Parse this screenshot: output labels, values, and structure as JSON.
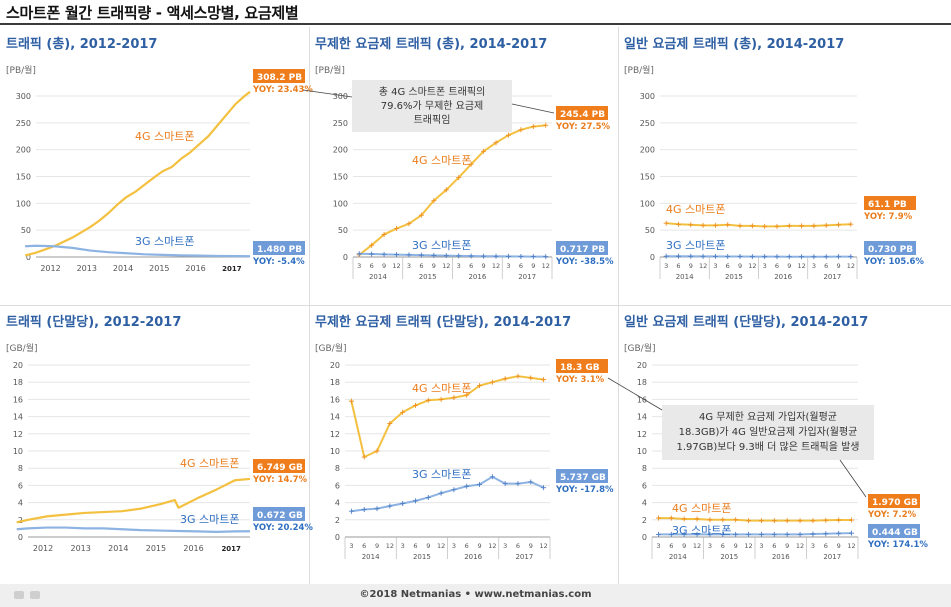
{
  "page_title": "스마트폰 월간 트래픽량 - 액세스망별, 요금제별",
  "footer": "©2018 Netmanias • www.netmanias.com",
  "colors": {
    "lte": "#f3c040",
    "lte_line_dark": "#ef8e1e",
    "lte_label": "#ea7d1c",
    "g3": "#8db3e2",
    "g3_dark": "#4f7fc6",
    "g3_label": "#2f6fc1",
    "box_orange": "#ef7d1c",
    "box_blue": "#6f9bd9",
    "title": "#2e5fa3"
  },
  "chart_data": [
    {
      "id": "p1",
      "type": "line",
      "title": "트래픽 (총), 2012-2017",
      "unit": "[PB/월]",
      "ylim": [
        0,
        300
      ],
      "yticks": [
        "0",
        "50",
        "100",
        "150",
        "200",
        "250",
        "300"
      ],
      "x_mode": "year",
      "x_range": [
        2012,
        2017.9
      ],
      "year_ticks": [
        "2012",
        "2013",
        "2014",
        "2015",
        "2016",
        "2017"
      ],
      "series": [
        {
          "name": "4G 스마트폰",
          "x": [
            2011.7,
            2012.0,
            2012.5,
            2013.0,
            2013.25,
            2013.5,
            2013.75,
            2014.0,
            2014.25,
            2014.5,
            2014.75,
            2015.0,
            2015.25,
            2015.5,
            2015.75,
            2016.0,
            2016.25,
            2016.5,
            2016.75,
            2017.0,
            2017.25,
            2017.5,
            2017.75,
            2017.9
          ],
          "values": [
            3,
            8,
            20,
            36,
            46,
            56,
            68,
            82,
            98,
            112,
            122,
            135,
            148,
            160,
            168,
            183,
            195,
            210,
            225,
            245,
            265,
            285,
            300,
            308
          ],
          "end_value": "308.2 PB",
          "yoy": "YOY: 23.43%"
        },
        {
          "name": "3G 스마트폰",
          "x": [
            2011.7,
            2012.0,
            2012.5,
            2013.0,
            2013.5,
            2014.0,
            2014.5,
            2015.0,
            2015.5,
            2016.0,
            2016.5,
            2017.0,
            2017.5,
            2017.9
          ],
          "values": [
            20,
            21,
            20,
            17,
            12,
            9,
            7,
            5,
            4,
            3,
            2.5,
            2,
            1.7,
            1.5
          ],
          "end_value": "1.480 PB",
          "yoy": "YOY: -5.4%"
        }
      ]
    },
    {
      "id": "p2",
      "type": "line",
      "title": "무제한 요금제 트래픽 (총), 2014-2017",
      "unit": "[PB/월]",
      "ylim": [
        0,
        300
      ],
      "yticks": [
        "0",
        "50",
        "100",
        "150",
        "200",
        "250",
        "300"
      ],
      "x_mode": "month",
      "month_ticks": [
        "3",
        "6",
        "9",
        "12",
        "3",
        "6",
        "9",
        "12",
        "3",
        "6",
        "9",
        "12",
        "3",
        "6",
        "9",
        "12"
      ],
      "year_ticks": [
        "2014",
        "2015",
        "2016",
        "2017"
      ],
      "series": [
        {
          "name": "4G 스마트폰",
          "values": [
            4,
            22,
            42,
            53,
            62,
            78,
            105,
            125,
            148,
            173,
            197,
            213,
            227,
            237,
            243,
            245.4
          ],
          "end_value": "245.4 PB",
          "yoy": "YOY: 27.5%"
        },
        {
          "name": "3G 스마트폰",
          "values": [
            6,
            5.5,
            5,
            4.5,
            4,
            3.5,
            3,
            2.5,
            2,
            1.8,
            1.5,
            1.3,
            1.1,
            0.9,
            0.8,
            0.717
          ],
          "end_value": "0.717 PB",
          "yoy": "YOY: -38.5%"
        }
      ],
      "annotation": [
        "총 4G 스마트폰 트래픽의",
        "79.6%가 무제한 요금제",
        "트래픽임"
      ]
    },
    {
      "id": "p3",
      "type": "line",
      "title": "일반 요금제 트래픽 (총), 2014-2017",
      "unit": "[PB/월]",
      "ylim": [
        0,
        300
      ],
      "yticks": [
        "0",
        "50",
        "100",
        "150",
        "200",
        "250",
        "300"
      ],
      "x_mode": "month",
      "month_ticks": [
        "3",
        "6",
        "9",
        "12",
        "3",
        "6",
        "9",
        "12",
        "3",
        "6",
        "9",
        "12",
        "3",
        "6",
        "9",
        "12"
      ],
      "year_ticks": [
        "2014",
        "2015",
        "2016",
        "2017"
      ],
      "series": [
        {
          "name": "4G 스마트폰",
          "values": [
            63,
            61,
            60,
            59,
            59,
            60,
            58,
            58,
            57,
            57,
            58,
            58,
            58,
            59,
            60,
            61.1
          ],
          "end_value": "61.1 PB",
          "yoy": "YOY: 7.9%"
        },
        {
          "name": "3G 스마트폰",
          "values": [
            1.5,
            1.4,
            1.3,
            1.2,
            1.1,
            1.0,
            0.9,
            0.8,
            0.7,
            0.6,
            0.55,
            0.5,
            0.5,
            0.55,
            0.65,
            0.73
          ],
          "end_value": "0.730 PB",
          "yoy": "YOY: 105.6%"
        }
      ]
    },
    {
      "id": "p4",
      "type": "line",
      "title": "트래픽 (단말당), 2012-2017",
      "unit": "[GB/월]",
      "ylim": [
        0,
        20
      ],
      "yticks": [
        "0",
        "2",
        "4",
        "6",
        "8",
        "10",
        "12",
        "14",
        "16",
        "18",
        "20"
      ],
      "x_mode": "year",
      "x_range": [
        2012,
        2017.9
      ],
      "year_ticks": [
        "2012",
        "2013",
        "2014",
        "2015",
        "2016",
        "2017"
      ],
      "series": [
        {
          "name": "4G 스마트폰",
          "x": [
            2011.7,
            2012.0,
            2012.5,
            2013.0,
            2013.5,
            2014.0,
            2014.5,
            2015.0,
            2015.5,
            2015.9,
            2016.0,
            2016.5,
            2017.0,
            2017.5,
            2017.9
          ],
          "values": [
            1.7,
            2.0,
            2.4,
            2.6,
            2.8,
            2.9,
            3.0,
            3.3,
            3.8,
            4.3,
            3.4,
            4.5,
            5.5,
            6.6,
            6.749
          ],
          "end_value": "6.749 GB",
          "yoy": "YOY: 14.7%"
        },
        {
          "name": "3G 스마트폰",
          "x": [
            2011.7,
            2012.0,
            2012.5,
            2013.0,
            2013.5,
            2014.0,
            2014.5,
            2015.0,
            2015.5,
            2016.0,
            2016.5,
            2017.0,
            2017.5,
            2017.9
          ],
          "values": [
            0.9,
            1.0,
            1.1,
            1.1,
            1.0,
            1.0,
            0.9,
            0.8,
            0.75,
            0.7,
            0.65,
            0.6,
            0.65,
            0.672
          ],
          "end_value": "0.672 GB",
          "yoy": "YOY: 20.24%"
        }
      ]
    },
    {
      "id": "p5",
      "type": "line",
      "title": "무제한 요금제 트래픽 (단말당), 2014-2017",
      "unit": "[GB/월]",
      "ylim": [
        0,
        20
      ],
      "yticks": [
        "0",
        "2",
        "4",
        "6",
        "8",
        "10",
        "12",
        "14",
        "16",
        "18",
        "20"
      ],
      "x_mode": "month",
      "month_ticks": [
        "3",
        "6",
        "9",
        "12",
        "3",
        "6",
        "9",
        "12",
        "3",
        "6",
        "9",
        "12",
        "3",
        "6",
        "9",
        "12"
      ],
      "year_ticks": [
        "2014",
        "2015",
        "2016",
        "2017"
      ],
      "series": [
        {
          "name": "4G 스마트폰",
          "values": [
            15.8,
            9.3,
            10.0,
            13.2,
            14.5,
            15.3,
            15.9,
            16.0,
            16.2,
            16.5,
            17.6,
            18.0,
            18.4,
            18.7,
            18.5,
            18.3
          ],
          "end_value": "18.3 GB",
          "yoy": "YOY: 3.1%"
        },
        {
          "name": "3G 스마트폰",
          "values": [
            3.0,
            3.2,
            3.3,
            3.6,
            3.9,
            4.2,
            4.6,
            5.1,
            5.5,
            5.9,
            6.1,
            7.0,
            6.2,
            6.2,
            6.4,
            5.737
          ],
          "end_value": "5.737 GB",
          "yoy": "YOY: -17.8%"
        }
      ]
    },
    {
      "id": "p6",
      "type": "line",
      "title": "일반 요금제 트래픽 (단말당), 2014-2017",
      "unit": "[GB/월]",
      "ylim": [
        0,
        20
      ],
      "yticks": [
        "0",
        "2",
        "4",
        "6",
        "8",
        "10",
        "12",
        "14",
        "16",
        "18",
        "20"
      ],
      "x_mode": "month",
      "month_ticks": [
        "3",
        "6",
        "9",
        "12",
        "3",
        "6",
        "9",
        "12",
        "3",
        "6",
        "9",
        "12",
        "3",
        "6",
        "9",
        "12"
      ],
      "year_ticks": [
        "2014",
        "2015",
        "2016",
        "2017"
      ],
      "series": [
        {
          "name": "4G 스마트폰",
          "values": [
            2.2,
            2.2,
            2.1,
            2.1,
            2.0,
            2.0,
            2.0,
            1.9,
            1.9,
            1.9,
            1.9,
            1.9,
            1.9,
            1.95,
            1.97,
            1.97
          ],
          "end_value": "1.970 GB",
          "yoy": "YOY: 7.2%"
        },
        {
          "name": "3G 스마트폰",
          "values": [
            0.3,
            0.3,
            0.3,
            0.3,
            0.3,
            0.3,
            0.3,
            0.3,
            0.3,
            0.3,
            0.3,
            0.3,
            0.35,
            0.38,
            0.42,
            0.444
          ],
          "end_value": "0.444 GB",
          "yoy": "YOY: 174.1%"
        }
      ],
      "annotation": [
        "4G 무제한 요금제 가입자(월평균",
        "18.3GB)가 4G 일반요금제 가입자(월평균",
        "1.97GB)보다 9.3배 더 많은 트래픽을 발생"
      ]
    }
  ]
}
